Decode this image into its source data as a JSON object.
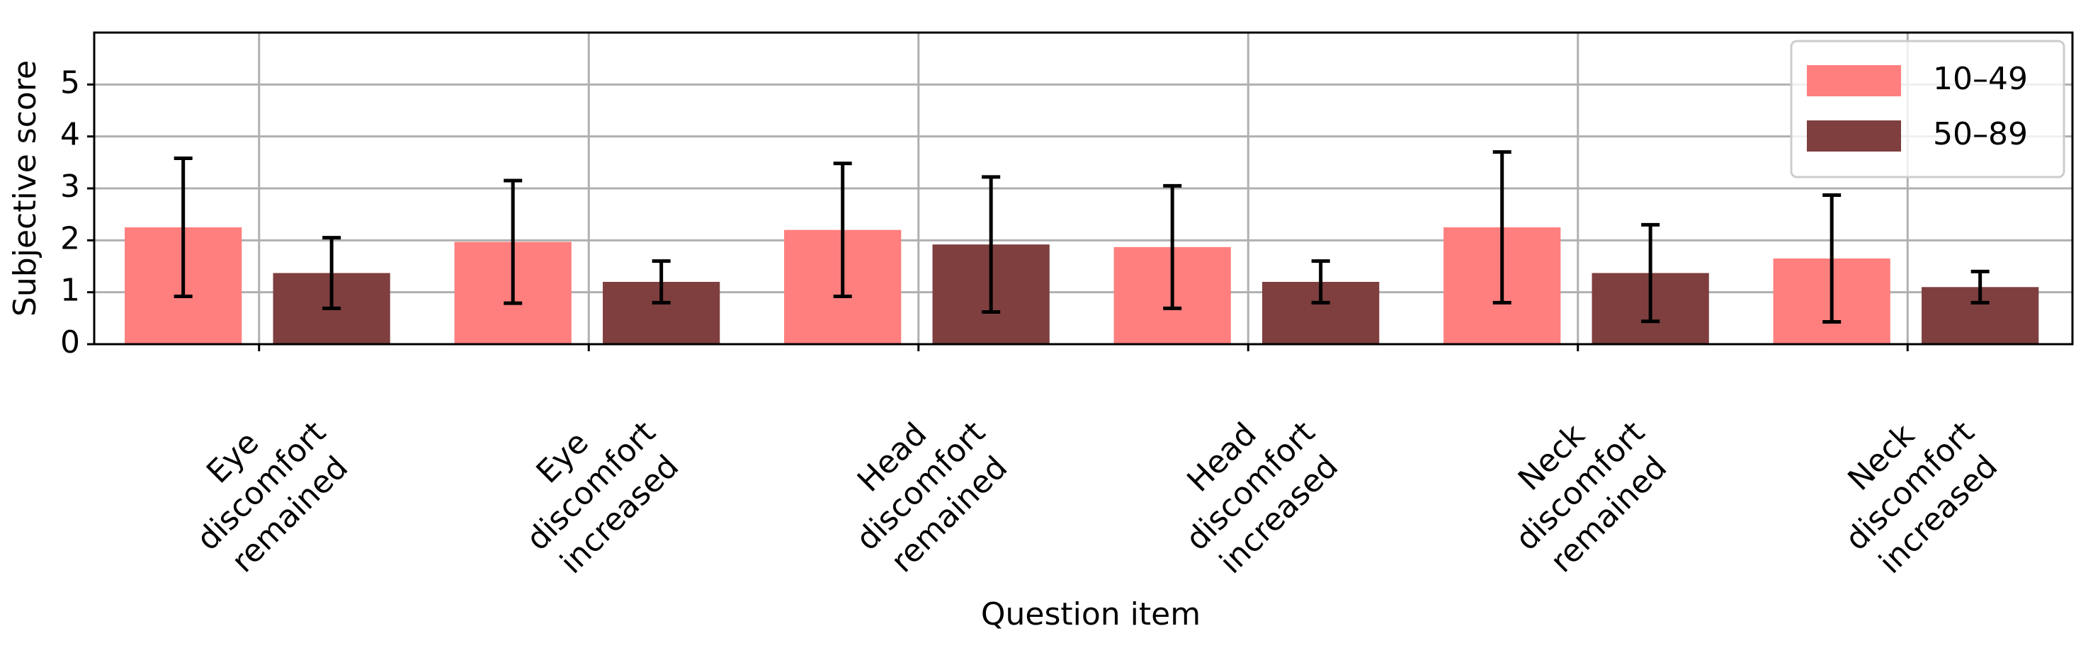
{
  "chart_data": {
    "type": "bar",
    "xlabel": "Question item",
    "ylabel": "Subjective score",
    "categories": [
      [
        "Eye",
        "discomfort",
        "remained"
      ],
      [
        "Eye",
        "discomfort",
        "increased"
      ],
      [
        "Head",
        "discomfort",
        "remained"
      ],
      [
        "Head",
        "discomfort",
        "increased"
      ],
      [
        "Neck",
        "discomfort",
        "remained"
      ],
      [
        "Neck",
        "discomfort",
        "increased"
      ]
    ],
    "series": [
      {
        "name": "10–49",
        "color": "#ff7f7f",
        "values": [
          2.25,
          1.97,
          2.2,
          1.87,
          2.25,
          1.65
        ],
        "errors": [
          1.33,
          1.18,
          1.28,
          1.18,
          1.45,
          1.22
        ]
      },
      {
        "name": "50–89",
        "color": "#7f3f3f",
        "values": [
          1.37,
          1.2,
          1.92,
          1.2,
          1.37,
          1.1
        ],
        "errors": [
          0.68,
          0.4,
          1.3,
          0.4,
          0.93,
          0.3
        ]
      }
    ],
    "ylim": [
      0,
      6
    ],
    "yticks": [
      0,
      1,
      2,
      3,
      4,
      5
    ],
    "grid": true,
    "legend": "upper right"
  }
}
